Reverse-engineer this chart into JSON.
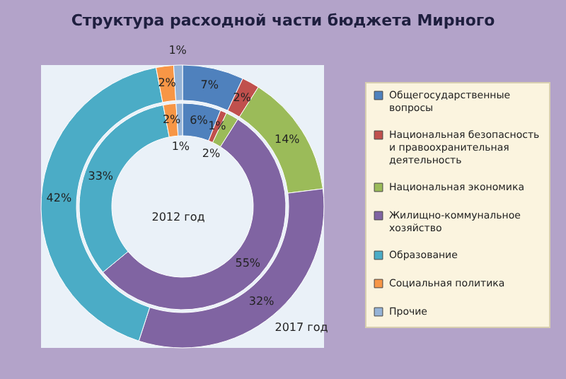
{
  "chart_data": {
    "type": "donut",
    "title": "Структура расходной части бюджета Мирного",
    "categories": [
      "Общегосударственные вопросы",
      "Национальная безопасность и правоохранительная деятельность",
      "Национальная экономика",
      "Жилищно-коммунальное хозяйство",
      "Образование",
      "Социальная политика",
      "Прочие"
    ],
    "colors": [
      "#4f81bd",
      "#c0504d",
      "#9bbb59",
      "#8064a2",
      "#4bacc6",
      "#f79646",
      "#95b3d7"
    ],
    "series": [
      {
        "name": "2017 год",
        "values": [
          7,
          2,
          14,
          32,
          42,
          2,
          1
        ],
        "value_labels": [
          "7%",
          "2%",
          "14%",
          "32%",
          "42%",
          "2%",
          "1%"
        ]
      },
      {
        "name": "2012 год",
        "values": [
          6,
          1,
          2,
          55,
          33,
          2,
          1
        ],
        "value_labels": [
          "6%",
          "1%",
          "2%",
          "55%",
          "33%",
          "2%",
          "1%"
        ]
      }
    ],
    "legend": "right"
  }
}
